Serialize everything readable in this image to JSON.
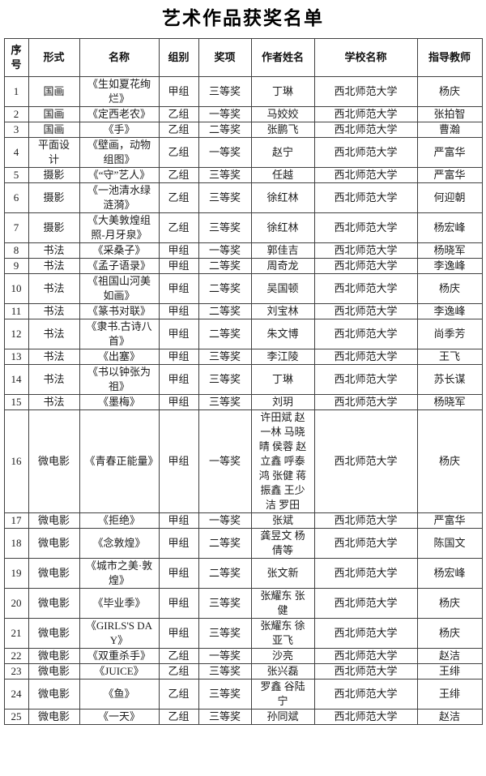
{
  "page_title": "艺术作品获奖名单",
  "table": {
    "headers": [
      "序号",
      "形式",
      "名称",
      "组别",
      "奖项",
      "作者姓名",
      "学校名称",
      "指导教师"
    ],
    "rows": [
      [
        "1",
        "国画",
        "《生如夏花绚烂》",
        "甲组",
        "三等奖",
        "丁琳",
        "西北师范大学",
        "杨庆"
      ],
      [
        "2",
        "国画",
        "《定西老农》",
        "乙组",
        "一等奖",
        "马姣姣",
        "西北师范大学",
        "张拍智"
      ],
      [
        "3",
        "国画",
        "《手》",
        "乙组",
        "二等奖",
        "张鹏飞",
        "西北师范大学",
        "曹瀚"
      ],
      [
        "4",
        "平面设计",
        "《壁画，动物组图》",
        "乙组",
        "一等奖",
        "赵宁",
        "西北师范大学",
        "严富华"
      ],
      [
        "5",
        "摄影",
        "《“守”艺人》",
        "乙组",
        "三等奖",
        "任越",
        "西北师范大学",
        "严富华"
      ],
      [
        "6",
        "摄影",
        "《一池清水绿涟漪》",
        "乙组",
        "三等奖",
        "徐红林",
        "西北师范大学",
        "何迎朝"
      ],
      [
        "7",
        "摄影",
        "《大美敦煌组照-月牙泉》",
        "乙组",
        "三等奖",
        "徐红林",
        "西北师范大学",
        "杨宏峰"
      ],
      [
        "8",
        "书法",
        "《采桑子》",
        "甲组",
        "一等奖",
        "郭佳吉",
        "西北师范大学",
        "杨晓军"
      ],
      [
        "9",
        "书法",
        "《孟子语录》",
        "甲组",
        "二等奖",
        "周奇龙",
        "西北师范大学",
        "李逸峰"
      ],
      [
        "10",
        "书法",
        "《祖国山河美如画》",
        "甲组",
        "二等奖",
        "吴国顿",
        "西北师范大学",
        "杨庆"
      ],
      [
        "11",
        "书法",
        "《篆书对联》",
        "甲组",
        "二等奖",
        "刘宝林",
        "西北师范大学",
        "李逸峰"
      ],
      [
        "12",
        "书法",
        "《隶书.古诗八首》",
        "甲组",
        "二等奖",
        "朱文博",
        "西北师范大学",
        "尚季芳"
      ],
      [
        "13",
        "书法",
        "《出塞》",
        "甲组",
        "三等奖",
        "李江陵",
        "西北师范大学",
        "王飞"
      ],
      [
        "14",
        "书法",
        "《书以钟张为祖》",
        "甲组",
        "三等奖",
        "丁琳",
        "西北师范大学",
        "苏长谋"
      ],
      [
        "15",
        "书法",
        "《墨梅》",
        "甲组",
        "三等奖",
        "刘玥",
        "西北师范大学",
        "杨晓军"
      ],
      [
        "16",
        "微电影",
        "《青春正能量》",
        "甲组",
        "一等奖",
        "许田斌 赵一林 马晓晴 侯蓉 赵立鑫 呼泰鸿 张健 蒋振鑫 王少洁 罗田",
        "西北师范大学",
        "杨庆"
      ],
      [
        "17",
        "微电影",
        "《拒绝》",
        "甲组",
        "一等奖",
        "张斌",
        "西北师范大学",
        "严富华"
      ],
      [
        "18",
        "微电影",
        "《念敦煌》",
        "甲组",
        "二等奖",
        "龚昱文 杨倩等",
        "西北师范大学",
        "陈国文"
      ],
      [
        "19",
        "微电影",
        "《城市之美·敦煌》",
        "甲组",
        "二等奖",
        "张文新",
        "西北师范大学",
        "杨宏峰"
      ],
      [
        "20",
        "微电影",
        "《毕业季》",
        "甲组",
        "三等奖",
        "张耀东 张健",
        "西北师范大学",
        "杨庆"
      ],
      [
        "21",
        "微电影",
        "《GIRLS'S DAY》",
        "甲组",
        "三等奖",
        "张耀东 徐亚飞",
        "西北师范大学",
        "杨庆"
      ],
      [
        "22",
        "微电影",
        "《双重杀手》",
        "乙组",
        "一等奖",
        "沙亮",
        "西北师范大学",
        "赵洁"
      ],
      [
        "23",
        "微电影",
        "《JUICE》",
        "乙组",
        "三等奖",
        "张兴磊",
        "西北师范大学",
        "王绯"
      ],
      [
        "24",
        "微电影",
        "《鱼》",
        "乙组",
        "三等奖",
        "罗鑫 谷陆宁",
        "西北师范大学",
        "王绯"
      ],
      [
        "25",
        "微电影",
        "《一天》",
        "乙组",
        "三等奖",
        "孙同斌",
        "西北师范大学",
        "赵洁"
      ]
    ]
  }
}
